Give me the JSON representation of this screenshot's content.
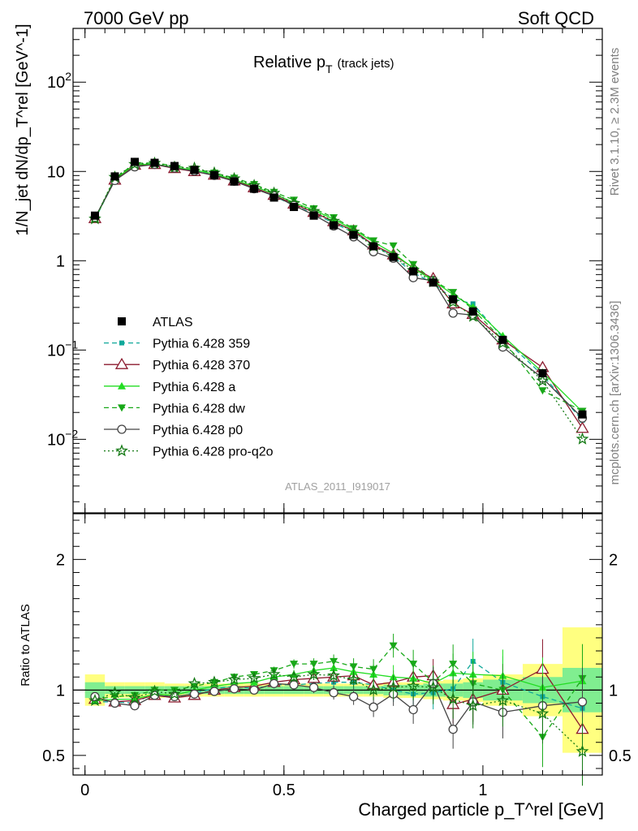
{
  "header": {
    "left": "7000 GeV pp",
    "right": "Soft QCD"
  },
  "side_labels": {
    "rivet": "Rivet 3.1.10, ≥ 2.3M events",
    "mcplots": "mcplots.cern.ch [arXiv:1306.3436]"
  },
  "top_panel": {
    "title_main": "Relative p",
    "title_sub": "T",
    "title_extra": "(track jets)",
    "ylabel": "1/N_jet dN/dp_T^rel [GeV^-1]",
    "yticks": [
      {
        "value": 0.01,
        "base": "10",
        "exp": "−2"
      },
      {
        "value": 0.1,
        "base": "10",
        "exp": "−1"
      },
      {
        "value": 1,
        "base": "1",
        "exp": ""
      },
      {
        "value": 10,
        "base": "10",
        "exp": ""
      },
      {
        "value": 100,
        "base": "10",
        "exp": "2"
      }
    ],
    "ylim": [
      0.0015,
      400
    ],
    "watermark": "ATLAS_2011_I919017"
  },
  "bottom_panel": {
    "ylabel": "Ratio to ATLAS",
    "ylim": [
      0.35,
      2.35
    ],
    "yticks": [
      "0.5",
      "1",
      "2"
    ]
  },
  "x_axis": {
    "label": "Charged particle p_T^rel [GeV]",
    "xlim": [
      -0.03,
      1.3
    ],
    "ticks": [
      "0",
      "0.5",
      "1"
    ]
  },
  "legend": [
    {
      "label": "ATLAS",
      "color": "#000000"
    },
    {
      "label": "Pythia 6.428 359",
      "color": "#10a89a"
    },
    {
      "label": "Pythia 6.428 370",
      "color": "#8b1a2e"
    },
    {
      "label": "Pythia 6.428 a",
      "color": "#22dd22"
    },
    {
      "label": "Pythia 6.428 dw",
      "color": "#18a818"
    },
    {
      "label": "Pythia 6.428 p0",
      "color": "#444444"
    },
    {
      "label": "Pythia 6.428 pro-q2o",
      "color": "#157a15"
    }
  ],
  "chart_data": {
    "type": "line",
    "x": [
      0.025,
      0.075,
      0.125,
      0.175,
      0.225,
      0.275,
      0.325,
      0.375,
      0.425,
      0.475,
      0.525,
      0.575,
      0.625,
      0.675,
      0.725,
      0.775,
      0.825,
      0.875,
      0.925,
      0.975,
      1.05,
      1.15,
      1.25
    ],
    "x_bin_edges": [
      0,
      0.05,
      0.1,
      0.15,
      0.2,
      0.25,
      0.3,
      0.35,
      0.4,
      0.45,
      0.5,
      0.55,
      0.6,
      0.65,
      0.7,
      0.75,
      0.8,
      0.85,
      0.9,
      0.95,
      1.0,
      1.1,
      1.2,
      1.3
    ],
    "data": [
      3.2,
      8.8,
      12.8,
      12.5,
      11.5,
      10.4,
      9.1,
      7.7,
      6.4,
      5.1,
      4.0,
      3.2,
      2.5,
      1.95,
      1.45,
      1.1,
      0.76,
      0.57,
      0.37,
      0.27,
      0.13,
      0.055,
      0.019
    ],
    "band_inner": [
      0.06,
      0.03,
      0.03,
      0.03,
      0.03,
      0.03,
      0.03,
      0.03,
      0.03,
      0.03,
      0.03,
      0.03,
      0.03,
      0.03,
      0.03,
      0.04,
      0.04,
      0.05,
      0.05,
      0.06,
      0.08,
      0.1,
      0.17
    ],
    "band_outer": [
      0.12,
      0.06,
      0.06,
      0.06,
      0.05,
      0.05,
      0.05,
      0.05,
      0.05,
      0.05,
      0.05,
      0.05,
      0.05,
      0.05,
      0.05,
      0.06,
      0.06,
      0.07,
      0.08,
      0.09,
      0.12,
      0.2,
      0.48
    ],
    "series": [
      {
        "name": "Pythia 6.428 359",
        "ratio": [
          0.91,
          0.91,
          0.9,
          0.98,
          0.94,
          0.98,
          1.01,
          1.03,
          1.01,
          1.04,
          1.04,
          1.05,
          1.06,
          1.06,
          1.04,
          1.0,
          0.97,
          0.98,
          1.01,
          1.22,
          1.06,
          0.95,
          0.86
        ]
      },
      {
        "name": "Pythia 6.428 370",
        "ratio": [
          0.93,
          0.91,
          0.92,
          0.96,
          0.94,
          0.96,
          1.0,
          1.02,
          1.03,
          1.06,
          1.08,
          1.09,
          1.1,
          1.11,
          1.04,
          1.06,
          1.1,
          1.11,
          0.89,
          0.93,
          1.0,
          1.16,
          0.7
        ]
      },
      {
        "name": "Pythia 6.428 a",
        "ratio": [
          0.92,
          0.93,
          0.93,
          0.97,
          0.96,
          1.0,
          1.03,
          1.05,
          1.06,
          1.1,
          1.12,
          1.15,
          1.17,
          1.14,
          1.12,
          1.1,
          1.09,
          1.05,
          1.13,
          1.12,
          1.11,
          1.02,
          1.07
        ]
      },
      {
        "name": "Pythia 6.428 dw",
        "ratio": [
          0.93,
          0.95,
          0.96,
          1.0,
          1.0,
          1.03,
          1.06,
          1.1,
          1.12,
          1.15,
          1.2,
          1.2,
          1.22,
          1.18,
          1.16,
          1.34,
          1.2,
          1.06,
          1.2,
          1.05,
          1.0,
          0.64,
          1.09
        ]
      },
      {
        "name": "Pythia 6.428 p0",
        "ratio": [
          0.95,
          0.9,
          0.88,
          0.96,
          0.95,
          0.97,
          0.99,
          1.01,
          1.0,
          1.05,
          1.04,
          1.02,
          0.98,
          0.95,
          0.87,
          0.97,
          0.85,
          1.05,
          0.7,
          0.91,
          0.83,
          0.88,
          0.91
        ]
      },
      {
        "name": "Pythia 6.428 pro-q2o",
        "ratio": [
          0.92,
          0.98,
          0.94,
          0.99,
          0.97,
          1.05,
          1.06,
          1.08,
          1.09,
          1.12,
          1.1,
          1.12,
          1.11,
          1.08,
          1.0,
          1.02,
          1.03,
          1.02,
          0.93,
          0.88,
          0.92,
          0.82,
          0.53
        ]
      }
    ]
  }
}
